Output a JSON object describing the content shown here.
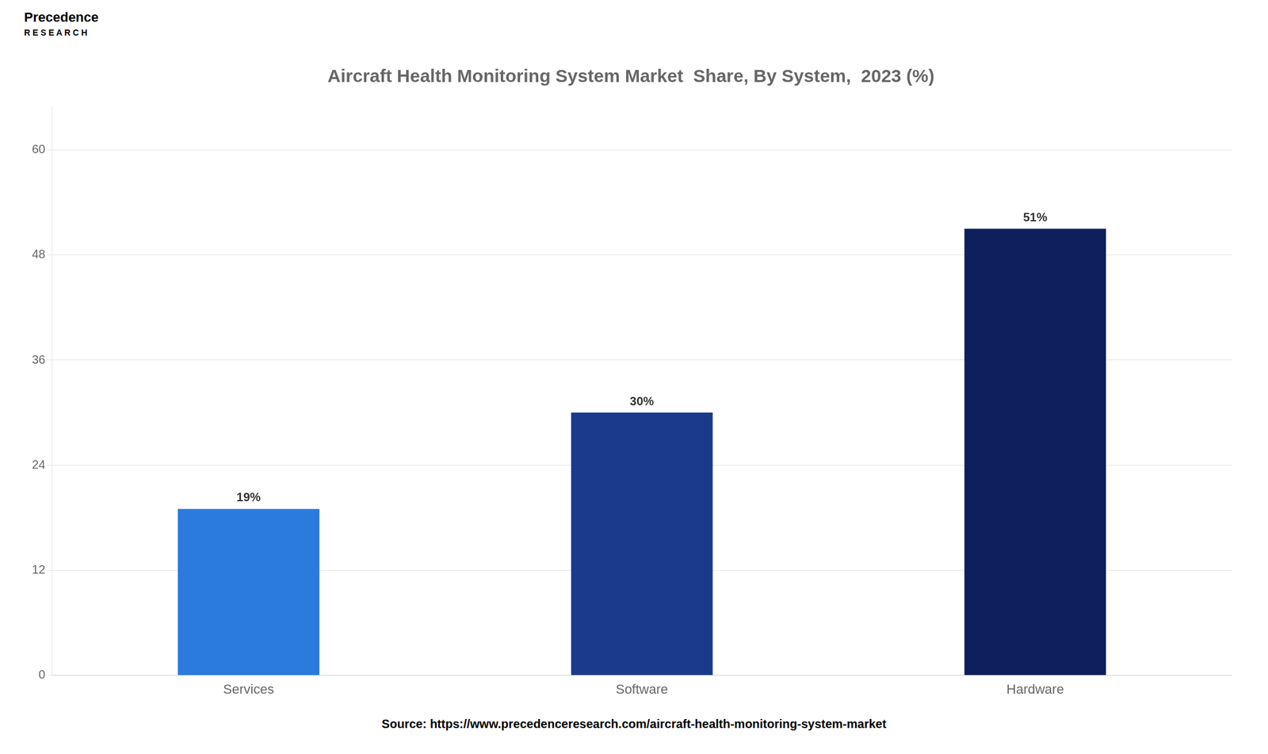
{
  "chart_data": {
    "type": "bar",
    "title": "Aircraft Health Monitoring System Market  Share, By System,  2023 (%)",
    "categories": [
      "Services",
      "Software",
      "Hardware"
    ],
    "values": [
      19,
      30,
      51
    ],
    "value_labels": [
      "19%",
      "30%",
      "51%"
    ],
    "data_labels": true,
    "colors": [
      "#2b7bde",
      "#1a3a8c",
      "#0d1f5c"
    ],
    "ylim": [
      0,
      65
    ],
    "yticks": [
      0,
      12,
      24,
      36,
      48,
      60
    ],
    "grid": true,
    "annotations": [
      "Source: https://www.precedenceresearch.com/aircraft-health-monitoring-system-market",
      "Precedence",
      "R E S E A R C H"
    ]
  }
}
